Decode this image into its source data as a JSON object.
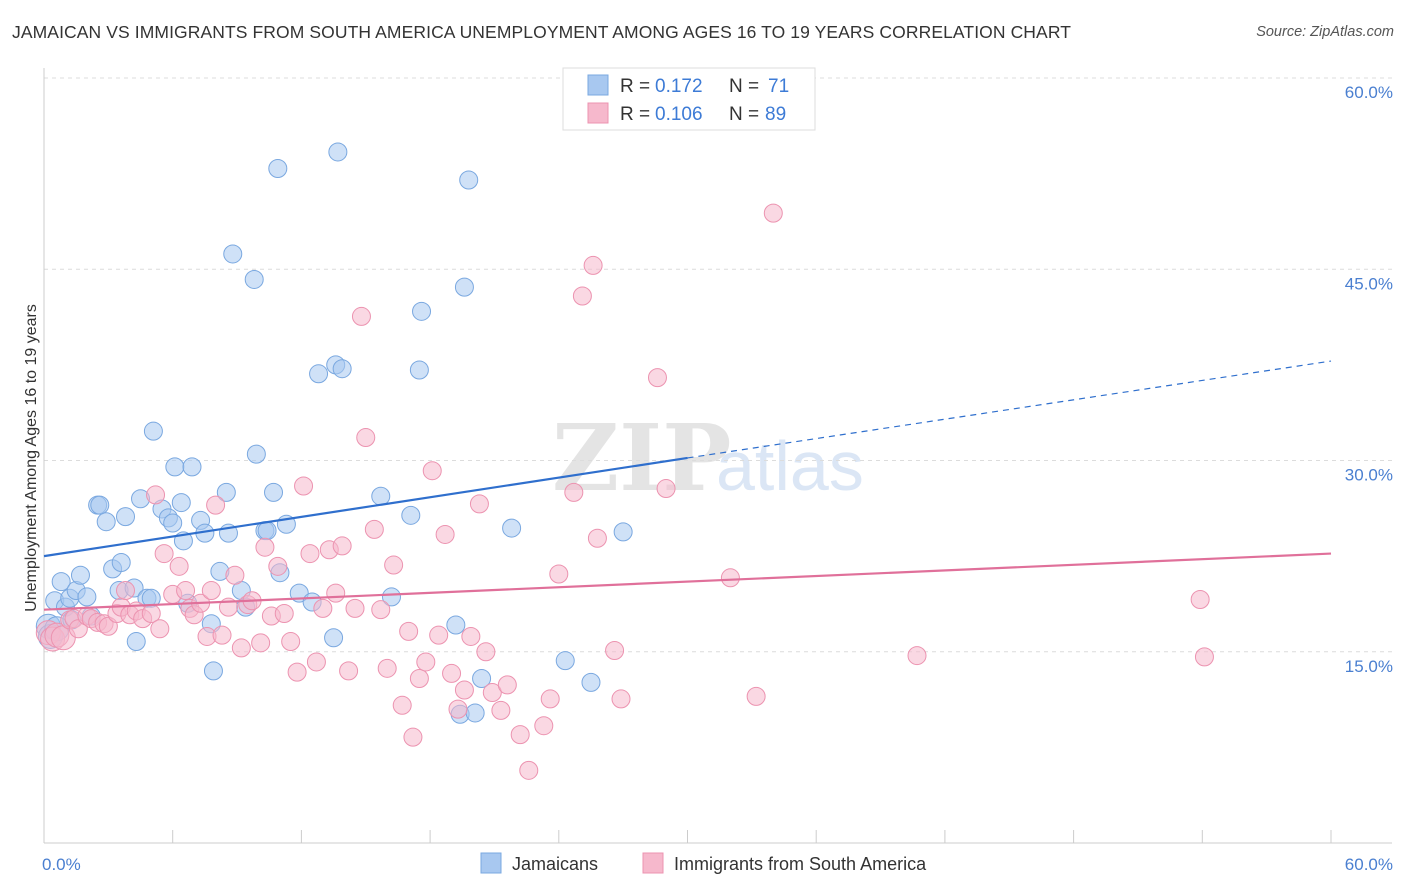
{
  "header": {
    "title": "JAMAICAN VS IMMIGRANTS FROM SOUTH AMERICA UNEMPLOYMENT AMONG AGES 16 TO 19 YEARS CORRELATION CHART",
    "source": "Source: ZipAtlas.com"
  },
  "watermark": {
    "zip": "ZIP",
    "atlas": "atlas"
  },
  "legend": {
    "rows": [
      {
        "r_label": "R =",
        "r_value": "0.172",
        "n_label": "N =",
        "n_value": "71",
        "color": "#a8c8f0"
      },
      {
        "r_label": "R =",
        "r_value": "0.106",
        "n_label": "N =",
        "n_value": "89",
        "color": "#f6b8cc"
      }
    ]
  },
  "bottom_legend": {
    "series1": "Jamaicans",
    "series2": "Immigrants from South America"
  },
  "chart_data": {
    "type": "scatter",
    "title": "JAMAICAN VS IMMIGRANTS FROM SOUTH AMERICA UNEMPLOYMENT AMONG AGES 16 TO 19 YEARS CORRELATION CHART",
    "xlabel": "",
    "ylabel": "Unemployment Among Ages 16 to 19 years",
    "xlim": [
      0,
      60
    ],
    "ylim": [
      0,
      60
    ],
    "x_tick_labels": [
      "0.0%",
      "60.0%"
    ],
    "y_tick_labels": [
      "15.0%",
      "30.0%",
      "45.0%",
      "60.0%"
    ],
    "y_tick_values": [
      15,
      30,
      45,
      60
    ],
    "grid": true,
    "legend_position": "top-center",
    "series": [
      {
        "name": "Jamaicans",
        "color": "#a8c8f0",
        "stroke": "#7aa8e0",
        "line_color": "#2f6fcd",
        "trend": {
          "x0": 0,
          "y0": 22.5,
          "x1": 30,
          "y1": 30.2,
          "dash_to_x": 60,
          "dash_to_y": 37.8
        },
        "points": [
          [
            0.2,
            17.0
          ],
          [
            0.3,
            16.2
          ],
          [
            0.5,
            19.0
          ],
          [
            0.6,
            16.8
          ],
          [
            0.8,
            20.5
          ],
          [
            1.0,
            18.5
          ],
          [
            1.2,
            19.2
          ],
          [
            1.3,
            17.5
          ],
          [
            1.5,
            19.8
          ],
          [
            1.7,
            21.0
          ],
          [
            2.0,
            19.3
          ],
          [
            2.2,
            17.8
          ],
          [
            2.5,
            26.5
          ],
          [
            2.6,
            26.5
          ],
          [
            2.9,
            25.2
          ],
          [
            3.2,
            21.5
          ],
          [
            3.5,
            19.8
          ],
          [
            3.6,
            22.0
          ],
          [
            3.8,
            25.6
          ],
          [
            4.2,
            20.0
          ],
          [
            4.3,
            15.8
          ],
          [
            4.5,
            27.0
          ],
          [
            4.8,
            19.2
          ],
          [
            5.0,
            19.2
          ],
          [
            5.1,
            32.3
          ],
          [
            5.5,
            26.2
          ],
          [
            5.8,
            25.5
          ],
          [
            6.0,
            25.1
          ],
          [
            6.1,
            29.5
          ],
          [
            6.4,
            26.7
          ],
          [
            6.5,
            23.7
          ],
          [
            6.7,
            18.8
          ],
          [
            6.9,
            29.5
          ],
          [
            7.3,
            25.3
          ],
          [
            7.5,
            24.3
          ],
          [
            7.8,
            17.2
          ],
          [
            7.9,
            13.5
          ],
          [
            8.2,
            21.3
          ],
          [
            8.5,
            27.5
          ],
          [
            8.6,
            24.3
          ],
          [
            8.8,
            46.2
          ],
          [
            9.2,
            19.8
          ],
          [
            9.4,
            18.5
          ],
          [
            9.8,
            44.2
          ],
          [
            9.9,
            30.5
          ],
          [
            10.3,
            24.5
          ],
          [
            10.4,
            24.5
          ],
          [
            10.7,
            27.5
          ],
          [
            10.9,
            52.9
          ],
          [
            11.0,
            21.2
          ],
          [
            11.3,
            25.0
          ],
          [
            11.9,
            19.6
          ],
          [
            12.5,
            18.9
          ],
          [
            12.8,
            36.8
          ],
          [
            13.5,
            16.1
          ],
          [
            13.6,
            37.5
          ],
          [
            13.7,
            54.2
          ],
          [
            13.9,
            37.2
          ],
          [
            15.7,
            27.2
          ],
          [
            16.2,
            19.3
          ],
          [
            17.1,
            25.7
          ],
          [
            17.5,
            37.1
          ],
          [
            17.6,
            41.7
          ],
          [
            19.2,
            17.1
          ],
          [
            19.4,
            10.1
          ],
          [
            19.6,
            43.6
          ],
          [
            19.8,
            52.0
          ],
          [
            20.1,
            10.2
          ],
          [
            20.4,
            12.9
          ],
          [
            21.8,
            24.7
          ],
          [
            24.3,
            14.3
          ],
          [
            25.5,
            12.6
          ],
          [
            27.0,
            24.4
          ]
        ]
      },
      {
        "name": "Immigrants from South America",
        "color": "#f6b8cc",
        "stroke": "#ec93b0",
        "line_color": "#e0709a",
        "trend": {
          "x0": 0,
          "y0": 18.3,
          "x1": 60,
          "y1": 22.7
        },
        "points": [
          [
            0.2,
            16.5
          ],
          [
            0.4,
            16.0
          ],
          [
            0.6,
            16.3
          ],
          [
            0.9,
            16.1
          ],
          [
            1.2,
            17.5
          ],
          [
            1.4,
            17.6
          ],
          [
            1.6,
            16.8
          ],
          [
            2.0,
            17.8
          ],
          [
            2.2,
            17.6
          ],
          [
            2.5,
            17.3
          ],
          [
            2.8,
            17.2
          ],
          [
            3.0,
            17.0
          ],
          [
            3.4,
            18.0
          ],
          [
            3.6,
            18.5
          ],
          [
            3.8,
            19.8
          ],
          [
            4.0,
            17.9
          ],
          [
            4.3,
            18.2
          ],
          [
            4.6,
            17.6
          ],
          [
            5.0,
            18.0
          ],
          [
            5.2,
            27.3
          ],
          [
            5.4,
            16.8
          ],
          [
            5.6,
            22.7
          ],
          [
            6.0,
            19.5
          ],
          [
            6.3,
            21.7
          ],
          [
            6.6,
            19.8
          ],
          [
            6.8,
            18.4
          ],
          [
            7.0,
            17.9
          ],
          [
            7.3,
            18.8
          ],
          [
            7.6,
            16.2
          ],
          [
            7.8,
            19.8
          ],
          [
            8.0,
            26.5
          ],
          [
            8.3,
            16.3
          ],
          [
            8.6,
            18.5
          ],
          [
            8.9,
            21.0
          ],
          [
            9.2,
            15.3
          ],
          [
            9.5,
            18.7
          ],
          [
            9.7,
            19.0
          ],
          [
            10.1,
            15.7
          ],
          [
            10.3,
            23.2
          ],
          [
            10.6,
            17.8
          ],
          [
            10.9,
            21.7
          ],
          [
            11.2,
            18.0
          ],
          [
            11.5,
            15.8
          ],
          [
            11.8,
            13.4
          ],
          [
            12.1,
            28.0
          ],
          [
            12.4,
            22.7
          ],
          [
            12.7,
            14.2
          ],
          [
            13.0,
            18.4
          ],
          [
            13.3,
            23.0
          ],
          [
            13.6,
            19.6
          ],
          [
            13.9,
            23.3
          ],
          [
            14.2,
            13.5
          ],
          [
            14.5,
            18.4
          ],
          [
            14.8,
            41.3
          ],
          [
            15.0,
            31.8
          ],
          [
            15.4,
            24.6
          ],
          [
            15.7,
            18.3
          ],
          [
            16.0,
            13.7
          ],
          [
            16.3,
            21.8
          ],
          [
            16.7,
            10.8
          ],
          [
            17.0,
            16.6
          ],
          [
            17.2,
            8.3
          ],
          [
            17.5,
            12.9
          ],
          [
            17.8,
            14.2
          ],
          [
            18.1,
            29.2
          ],
          [
            18.4,
            16.3
          ],
          [
            18.7,
            24.2
          ],
          [
            19.0,
            13.3
          ],
          [
            19.3,
            10.5
          ],
          [
            19.6,
            12.0
          ],
          [
            19.9,
            16.2
          ],
          [
            20.3,
            26.6
          ],
          [
            20.6,
            15.0
          ],
          [
            20.9,
            11.8
          ],
          [
            21.3,
            10.4
          ],
          [
            21.6,
            12.4
          ],
          [
            22.2,
            8.5
          ],
          [
            22.6,
            5.7
          ],
          [
            23.3,
            9.2
          ],
          [
            23.6,
            11.3
          ],
          [
            24.0,
            21.1
          ],
          [
            24.7,
            27.5
          ],
          [
            25.1,
            42.9
          ],
          [
            25.6,
            45.3
          ],
          [
            25.8,
            23.9
          ],
          [
            26.6,
            15.1
          ],
          [
            26.9,
            11.3
          ],
          [
            28.6,
            36.5
          ],
          [
            29.0,
            27.8
          ],
          [
            32.0,
            20.8
          ],
          [
            33.2,
            11.5
          ],
          [
            34.0,
            49.4
          ],
          [
            40.7,
            14.7
          ],
          [
            53.9,
            19.1
          ],
          [
            54.1,
            14.6
          ]
        ]
      }
    ]
  }
}
